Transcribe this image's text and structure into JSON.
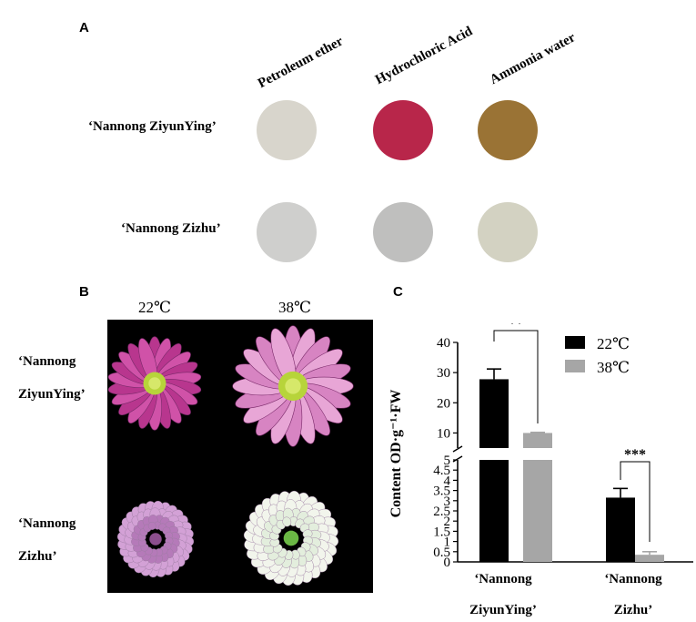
{
  "panel_a": {
    "letter": "A",
    "treatments": [
      "Petroleum ether",
      "Hydrochloric Acid",
      "Ammonia water"
    ],
    "cultivars": [
      "‘Nannong ZiyunYing’",
      "‘Nannong Zizhu’"
    ],
    "colors": {
      "row1": [
        "#d8d5cc",
        "#b8264a",
        "#9a7335"
      ],
      "row2": [
        "#cfcfcd",
        "#bfbfbe",
        "#d3d2c2"
      ]
    }
  },
  "panel_b": {
    "letter": "B",
    "temps": [
      "22℃",
      "38℃"
    ],
    "cultivars": [
      [
        "‘Nannong",
        "ZiyunYing’"
      ],
      [
        "‘Nannong",
        "Zizhu’"
      ]
    ],
    "flower_icons": [
      "pink-daisy-flower-icon",
      "white-pompon-flower-icon"
    ]
  },
  "chart_data": {
    "letter": "C",
    "type": "bar",
    "categories": [
      [
        "‘Nannong",
        "ZiyunYing’"
      ],
      [
        "‘Nannong",
        "Zizhu’"
      ]
    ],
    "series": [
      {
        "name": "22℃",
        "color": "#000000",
        "values": [
          27.8,
          3.15
        ],
        "errors": [
          3.4,
          0.45
        ]
      },
      {
        "name": "38℃",
        "color": "#a6a6a6",
        "values": [
          10.0,
          0.35
        ],
        "errors": [
          0.2,
          0.15
        ]
      }
    ],
    "ylabel": "Content  OD·g⁻¹·FW",
    "y_axis_break": {
      "lower": [
        0,
        5
      ],
      "upper": [
        5,
        40
      ]
    },
    "y_ticks_lower": [
      "0",
      "0.5",
      "1",
      "1.5",
      "2",
      "2.5",
      "3",
      "3.5",
      "4",
      "4.5",
      "5"
    ],
    "y_ticks_upper": [
      "10",
      "20",
      "30",
      "40"
    ],
    "significance": [
      "**",
      "***"
    ],
    "legend_position": "top-right"
  }
}
